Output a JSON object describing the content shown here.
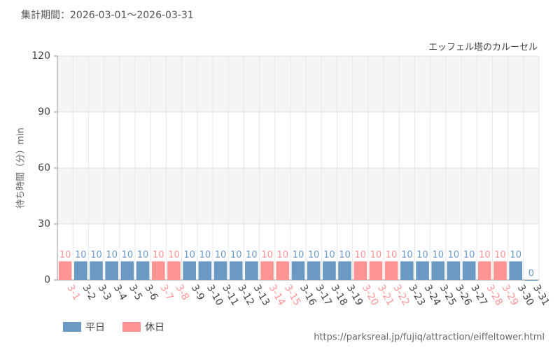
{
  "chart_data": {
    "type": "bar",
    "title": "集計期間：2026-03-01～2026-03-31",
    "subtitle": "エッフェル塔のカルーセル",
    "y_label": "待ち時間（分）min",
    "source": "https://parksreal.jp/fujiq/attraction/eiffeltower.html",
    "categories": [
      "3-1",
      "3-2",
      "3-3",
      "3-4",
      "3-5",
      "3-6",
      "3-7",
      "3-8",
      "3-9",
      "3-10",
      "3-11",
      "3-12",
      "3-13",
      "3-14",
      "3-15",
      "3-16",
      "3-17",
      "3-18",
      "3-19",
      "3-20",
      "3-21",
      "3-22",
      "3-23",
      "3-24",
      "3-25",
      "3-26",
      "3-27",
      "3-28",
      "3-29",
      "3-30",
      "3-31"
    ],
    "series": [
      {
        "name": "平日",
        "color": "#6a9ac4",
        "values": [
          null,
          10,
          10,
          10,
          10,
          10,
          null,
          null,
          10,
          10,
          10,
          10,
          10,
          null,
          null,
          10,
          10,
          10,
          10,
          null,
          null,
          null,
          10,
          10,
          10,
          10,
          10,
          null,
          null,
          10,
          0
        ]
      },
      {
        "name": "休日",
        "color": "#ff9494",
        "values": [
          10,
          null,
          null,
          null,
          null,
          null,
          10,
          10,
          null,
          null,
          null,
          null,
          null,
          10,
          10,
          null,
          null,
          null,
          null,
          10,
          10,
          10,
          null,
          null,
          null,
          null,
          null,
          10,
          10,
          null,
          null
        ]
      }
    ],
    "ylim": [
      0,
      120
    ],
    "yticks": [
      0,
      30,
      60,
      90,
      120
    ],
    "grid": true
  }
}
